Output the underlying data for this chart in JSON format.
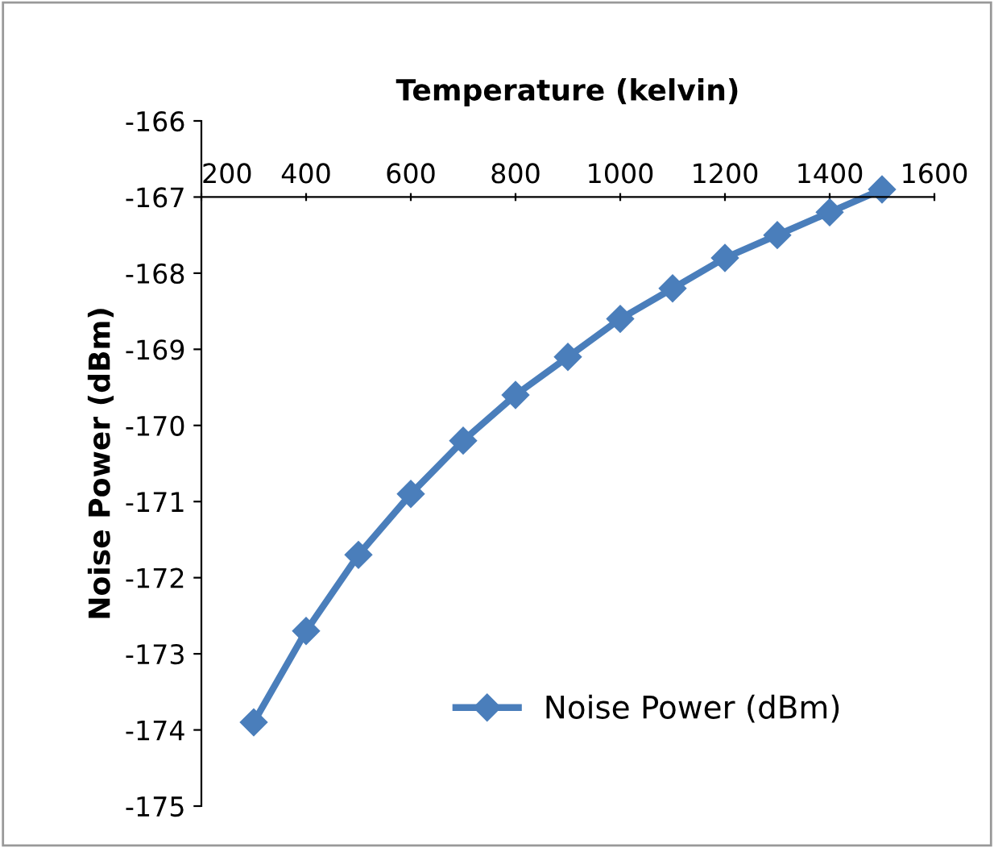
{
  "chart_data": {
    "type": "line",
    "xlabel": "Temperature (kelvin)",
    "ylabel": "Noise Power (dBm)",
    "x": [
      300,
      400,
      500,
      600,
      700,
      800,
      900,
      1000,
      1100,
      1200,
      1300,
      1400,
      1500
    ],
    "series": [
      {
        "name": "Noise Power (dBm)",
        "color": "#4a7ebb",
        "values": [
          -173.9,
          -172.7,
          -171.7,
          -170.9,
          -170.2,
          -169.6,
          -169.1,
          -168.6,
          -168.2,
          -167.8,
          -167.5,
          -167.2,
          -166.9
        ]
      }
    ],
    "xlim": [
      200,
      1600
    ],
    "xticks": [
      200,
      400,
      600,
      800,
      1000,
      1200,
      1400,
      1600
    ],
    "ylim": [
      -175,
      -166
    ],
    "yticks": [
      -175,
      -174,
      -173,
      -172,
      -171,
      -170,
      -169,
      -168,
      -167,
      -166
    ],
    "marker": "diamond",
    "line_style": "solid",
    "legend": "bottom right",
    "grid": false
  }
}
